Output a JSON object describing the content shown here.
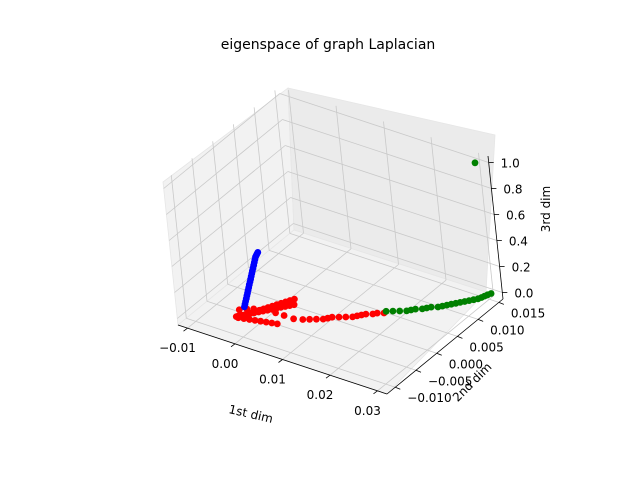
{
  "chart_data": {
    "type": "scatter",
    "projection": "3d",
    "title": "eigenspace of graph Laplacian",
    "xlabel": "1st dim",
    "ylabel": "2nd dim",
    "zlabel": "3rd dim",
    "xlim": [
      -0.012,
      0.032
    ],
    "ylim": [
      -0.012,
      0.016
    ],
    "zlim": [
      -0.05,
      1.05
    ],
    "xticks": [
      "−0.01",
      "0.00",
      "0.01",
      "0.02",
      "0.03"
    ],
    "yticks": [
      "−0.010",
      "−0.005",
      "0.000",
      "0.005",
      "0.010",
      "0.015"
    ],
    "zticks": [
      "0.0",
      "0.2",
      "0.4",
      "0.6",
      "0.8",
      "1.0"
    ],
    "grid": true,
    "colors": {
      "series_1": "#ff0000",
      "series_2": "#0000ff",
      "series_3": "#008000"
    },
    "series": [
      {
        "color": "#ff0000",
        "points": [
          [
            -0.0035,
            -0.0075,
            0.0
          ],
          [
            -0.003,
            -0.007,
            0.0
          ],
          [
            -0.0025,
            -0.0065,
            0.0
          ],
          [
            -0.002,
            -0.006,
            0.0
          ],
          [
            -0.0015,
            -0.0055,
            0.0
          ],
          [
            -0.001,
            -0.005,
            0.0
          ],
          [
            -0.0005,
            -0.0045,
            0.0
          ],
          [
            0.0,
            -0.004,
            0.0
          ],
          [
            0.0005,
            -0.0035,
            0.0
          ],
          [
            0.001,
            -0.003,
            0.0
          ],
          [
            0.0015,
            -0.0025,
            0.0
          ],
          [
            0.002,
            -0.002,
            0.0
          ],
          [
            0.0025,
            -0.0015,
            0.0
          ],
          [
            0.003,
            -0.001,
            0.0
          ],
          [
            -0.003,
            -0.0076,
            0.0
          ],
          [
            -0.002,
            -0.0074,
            0.0
          ],
          [
            -0.001,
            -0.0072,
            0.0
          ],
          [
            0.0,
            -0.007,
            0.0
          ],
          [
            0.001,
            -0.0068,
            0.0
          ],
          [
            0.002,
            -0.0066,
            0.0
          ],
          [
            0.003,
            -0.0064,
            0.0
          ],
          [
            0.004,
            -0.0062,
            0.0
          ],
          [
            -0.0033,
            -0.0073,
            0.0
          ],
          [
            -0.0028,
            -0.0068,
            0.0
          ],
          [
            -0.0024,
            -0.0064,
            0.0
          ],
          [
            -0.002,
            -0.0058,
            0.0
          ],
          [
            -0.0016,
            -0.0052,
            0.0
          ],
          [
            -0.0012,
            -0.0046,
            0.0
          ],
          [
            -0.0008,
            -0.004,
            0.0
          ],
          [
            -0.0004,
            -0.0034,
            0.0
          ],
          [
            0.0,
            -0.0028,
            0.0
          ],
          [
            0.0004,
            -0.0022,
            0.0
          ],
          [
            0.0008,
            -0.0016,
            0.0
          ],
          [
            0.0012,
            -0.001,
            0.0
          ],
          [
            0.0016,
            -0.0004,
            0.0
          ],
          [
            0.002,
            0.0002,
            0.0
          ],
          [
            -0.003,
            -0.0072,
            0.05
          ],
          [
            -0.002,
            -0.0065,
            0.05
          ],
          [
            -0.001,
            -0.006,
            0.05
          ],
          [
            0.0,
            -0.0055,
            0.04
          ],
          [
            0.001,
            -0.005,
            0.04
          ],
          [
            0.0025,
            -0.0048,
            0.03
          ],
          [
            0.004,
            -0.0045,
            0.02
          ],
          [
            0.0055,
            -0.004,
            0.0
          ],
          [
            0.007,
            -0.0035,
            0.0
          ],
          [
            0.008,
            -0.003,
            0.0
          ],
          [
            0.009,
            -0.0025,
            0.0
          ],
          [
            0.01,
            -0.002,
            0.0
          ],
          [
            0.0105,
            -0.0015,
            0.0
          ],
          [
            0.011,
            -0.001,
            0.0
          ],
          [
            0.012,
            -0.0005,
            0.0
          ],
          [
            0.013,
            0.0,
            0.0
          ],
          [
            0.014,
            0.0005,
            0.0
          ],
          [
            0.0145,
            0.001,
            0.0
          ],
          [
            0.015,
            0.0015,
            0.0
          ],
          [
            0.0155,
            0.002,
            0.0
          ],
          [
            0.0165,
            0.0025,
            0.0
          ],
          [
            0.017,
            0.003,
            0.0
          ],
          [
            0.018,
            0.0035,
            0.0
          ]
        ]
      },
      {
        "color": "#0000ff",
        "points": [
          [
            -0.0025,
            -0.0065,
            0.06
          ],
          [
            -0.0024,
            -0.0064,
            0.08
          ],
          [
            -0.0023,
            -0.0063,
            0.1
          ],
          [
            -0.0022,
            -0.0062,
            0.12
          ],
          [
            -0.0021,
            -0.0061,
            0.14
          ],
          [
            -0.002,
            -0.006,
            0.16
          ],
          [
            -0.0019,
            -0.0059,
            0.18
          ],
          [
            -0.0018,
            -0.0058,
            0.2
          ],
          [
            -0.0017,
            -0.0057,
            0.22
          ],
          [
            -0.0016,
            -0.0056,
            0.24
          ],
          [
            -0.0015,
            -0.0055,
            0.26
          ],
          [
            -0.0014,
            -0.0054,
            0.28
          ],
          [
            -0.0013,
            -0.0053,
            0.3
          ],
          [
            -0.0012,
            -0.0052,
            0.32
          ],
          [
            -0.0011,
            -0.0051,
            0.34
          ],
          [
            -0.001,
            -0.005,
            0.36
          ],
          [
            -0.0009,
            -0.0049,
            0.38
          ],
          [
            -0.0008,
            -0.0048,
            0.4
          ],
          [
            -0.0007,
            -0.0047,
            0.42
          ],
          [
            -0.0006,
            -0.0046,
            0.43
          ],
          [
            -0.0005,
            -0.0045,
            0.44
          ],
          [
            -0.0004,
            -0.0044,
            0.45
          ]
        ]
      },
      {
        "color": "#008000",
        "points": [
          [
            0.018,
            0.004,
            0.0
          ],
          [
            0.019,
            0.0045,
            0.0
          ],
          [
            0.02,
            0.005,
            0.0
          ],
          [
            0.021,
            0.0055,
            0.0
          ],
          [
            0.0215,
            0.006,
            0.0
          ],
          [
            0.022,
            0.0065,
            0.0
          ],
          [
            0.023,
            0.007,
            0.0
          ],
          [
            0.0235,
            0.0075,
            0.0
          ],
          [
            0.024,
            0.008,
            0.0
          ],
          [
            0.025,
            0.0085,
            0.0
          ],
          [
            0.0255,
            0.009,
            0.0
          ],
          [
            0.026,
            0.0095,
            0.0
          ],
          [
            0.0265,
            0.01,
            0.0
          ],
          [
            0.027,
            0.0105,
            0.0
          ],
          [
            0.0275,
            0.011,
            0.0
          ],
          [
            0.028,
            0.0115,
            0.0
          ],
          [
            0.0285,
            0.012,
            0.0
          ],
          [
            0.029,
            0.0125,
            0.0
          ],
          [
            0.0295,
            0.013,
            0.0
          ],
          [
            0.0298,
            0.0135,
            0.0
          ],
          [
            0.03,
            0.014,
            0.0
          ],
          [
            0.0302,
            0.0145,
            0.0
          ],
          [
            0.0305,
            0.015,
            0.0
          ],
          [
            0.03,
            0.015,
            1.0
          ]
        ]
      }
    ]
  }
}
